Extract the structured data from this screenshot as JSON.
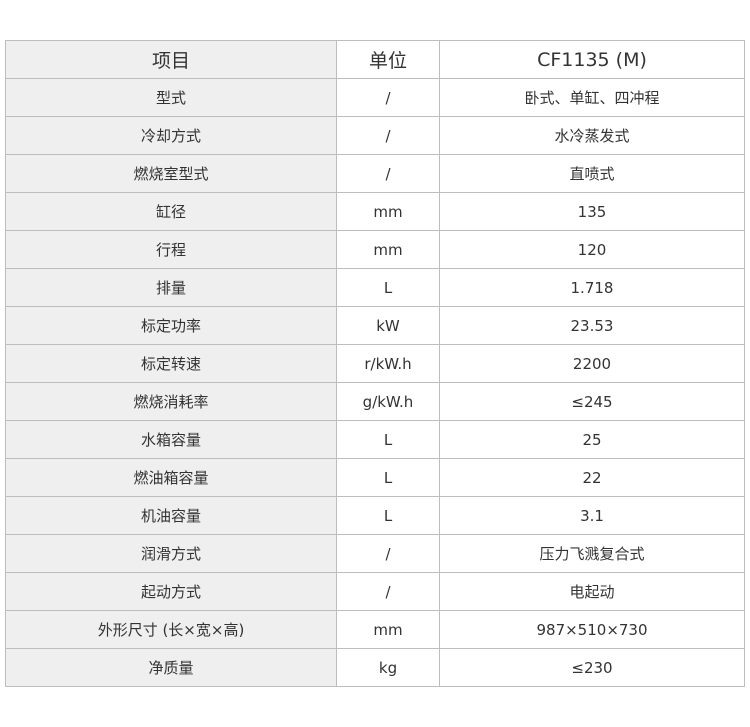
{
  "table": {
    "headers": [
      "项目",
      "单位",
      "CF1135 (M)"
    ],
    "rows": [
      [
        "型式",
        "/",
        "卧式、单缸、四冲程"
      ],
      [
        "冷却方式",
        "/",
        "水冷蒸发式"
      ],
      [
        "燃烧室型式",
        "/",
        "直喷式"
      ],
      [
        "缸径",
        "mm",
        "135"
      ],
      [
        "行程",
        "mm",
        "120"
      ],
      [
        "排量",
        "L",
        "1.718"
      ],
      [
        "标定功率",
        "kW",
        "23.53"
      ],
      [
        "标定转速",
        "r/kW.h",
        "2200"
      ],
      [
        "燃烧消耗率",
        "g/kW.h",
        "≤245"
      ],
      [
        "水箱容量",
        "L",
        "25"
      ],
      [
        "燃油箱容量",
        "L",
        "22"
      ],
      [
        "机油容量",
        "L",
        "3.1"
      ],
      [
        "润滑方式",
        "/",
        "压力飞溅复合式"
      ],
      [
        "起动方式",
        "/",
        "电起动"
      ],
      [
        "外形尺寸 (长×宽×高)",
        "mm",
        "987×510×730"
      ],
      [
        "净质量",
        "kg",
        "≤230"
      ]
    ]
  }
}
